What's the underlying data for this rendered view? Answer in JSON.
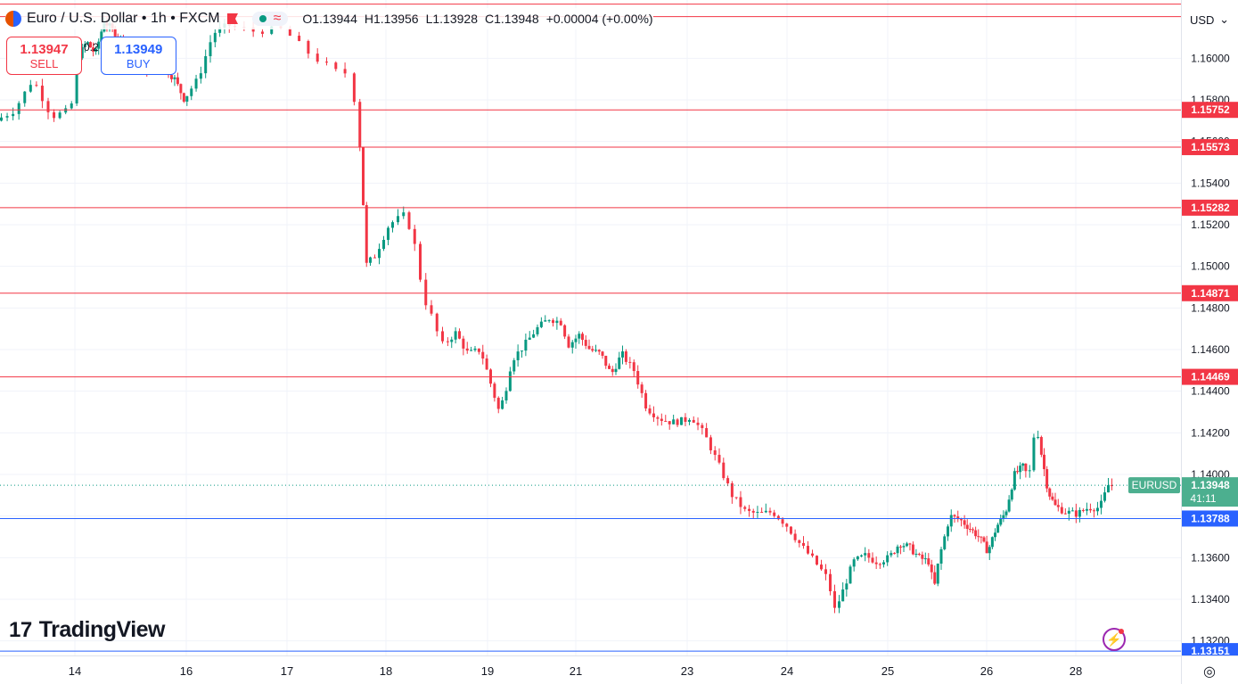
{
  "header": {
    "symbol_title": "Euro / U.S. Dollar • 1h • FXCM",
    "ohlc": {
      "open": "O1.13944",
      "high": "H1.13956",
      "low": "L1.13928",
      "close": "C1.13948",
      "change": "+0.00004 (+0.00%)"
    },
    "currency": "USD"
  },
  "trade": {
    "sell_price": "1.13947",
    "sell_label": "SELL",
    "buy_price": "1.13949",
    "buy_label": "BUY",
    "spread": "0.2"
  },
  "logo_text": "TradingView",
  "current_price": {
    "symbol": "EURUSD",
    "price": "1.13948",
    "countdown": "41:11"
  },
  "colors": {
    "up": "#089981",
    "down": "#f23645",
    "resistance": "#f23645",
    "support": "#2962ff",
    "grid": "#f0f3fa"
  },
  "chart_data": {
    "type": "candlestick",
    "instrument": "EURUSD",
    "timeframe": "1h",
    "ylim": [
      1.1313,
      1.1628
    ],
    "y_ticks": [
      "1.16000",
      "1.15800",
      "1.15600",
      "1.15400",
      "1.15200",
      "1.15000",
      "1.14800",
      "1.14600",
      "1.14400",
      "1.14200",
      "1.14000",
      "1.13800",
      "1.13600",
      "1.13400",
      "1.13200"
    ],
    "x_ticks": [
      {
        "label": "14",
        "day": 14
      },
      {
        "label": "16",
        "day": 16
      },
      {
        "label": "17",
        "day": 17
      },
      {
        "label": "18",
        "day": 18
      },
      {
        "label": "19",
        "day": 19
      },
      {
        "label": "21",
        "day": 21
      },
      {
        "label": "23",
        "day": 23
      },
      {
        "label": "24",
        "day": 24
      },
      {
        "label": "25",
        "day": 25
      },
      {
        "label": "26",
        "day": 26
      },
      {
        "label": "28",
        "day": 28
      }
    ],
    "horizontal_levels": [
      {
        "value": 1.15752,
        "label": "1.15752",
        "kind": "resistance"
      },
      {
        "value": 1.15573,
        "label": "1.15573",
        "kind": "resistance"
      },
      {
        "value": 1.15282,
        "label": "1.15282",
        "kind": "resistance"
      },
      {
        "value": 1.14871,
        "label": "1.14871",
        "kind": "resistance"
      },
      {
        "value": 1.14469,
        "label": "1.14469",
        "kind": "resistance"
      },
      {
        "value": 1.13788,
        "label": "1.13788",
        "kind": "support"
      },
      {
        "value": 1.13151,
        "label": "1.13151",
        "kind": "support"
      }
    ],
    "top_levels": [
      1.162,
      1.1626
    ],
    "last_price": 1.13948,
    "price_path": [
      [
        13.2,
        1.157
      ],
      [
        13.4,
        1.1575
      ],
      [
        13.6,
        1.159
      ],
      [
        13.8,
        1.1572
      ],
      [
        14.0,
        1.1575
      ],
      [
        14.1,
        1.16
      ],
      [
        14.3,
        1.1608
      ],
      [
        14.5,
        1.1602
      ],
      [
        14.7,
        1.1618
      ],
      [
        15.0,
        1.1611
      ],
      [
        15.3,
        1.1604
      ],
      [
        15.6,
        1.1594
      ],
      [
        15.9,
        1.1598
      ],
      [
        16.2,
        1.159
      ],
      [
        16.4,
        1.158
      ],
      [
        16.6,
        1.159
      ],
      [
        16.8,
        1.1612
      ],
      [
        17.0,
        1.1616
      ],
      [
        17.2,
        1.1613
      ],
      [
        17.4,
        1.1614
      ],
      [
        17.6,
        1.1601
      ],
      [
        17.8,
        1.1592
      ],
      [
        17.85,
        1.1594
      ],
      [
        18.0,
        1.154
      ],
      [
        18.05,
        1.15
      ],
      [
        18.2,
        1.1505
      ],
      [
        18.4,
        1.152
      ],
      [
        18.6,
        1.1525
      ],
      [
        18.7,
        1.151
      ],
      [
        18.8,
        1.1485
      ],
      [
        18.9,
        1.1475
      ],
      [
        19.0,
        1.1462
      ],
      [
        19.2,
        1.1468
      ],
      [
        19.4,
        1.1458
      ],
      [
        19.6,
        1.146
      ],
      [
        19.8,
        1.144
      ],
      [
        19.9,
        1.143
      ],
      [
        20.0,
        1.144
      ],
      [
        20.1,
        1.1455
      ],
      [
        20.3,
        1.1462
      ],
      [
        20.5,
        1.147
      ],
      [
        20.7,
        1.1475
      ],
      [
        20.9,
        1.1473
      ],
      [
        21.0,
        1.1462
      ],
      [
        21.2,
        1.1467
      ],
      [
        21.4,
        1.146
      ],
      [
        21.6,
        1.1458
      ],
      [
        21.8,
        1.1448
      ],
      [
        22.0,
        1.1458
      ],
      [
        22.2,
        1.145
      ],
      [
        22.4,
        1.1432
      ],
      [
        22.6,
        1.1427
      ],
      [
        22.8,
        1.1425
      ],
      [
        23.0,
        1.1426
      ],
      [
        23.1,
        1.1428
      ],
      [
        23.3,
        1.1419
      ],
      [
        23.5,
        1.1405
      ],
      [
        23.7,
        1.139
      ],
      [
        23.9,
        1.1382
      ],
      [
        24.1,
        1.1381
      ],
      [
        24.3,
        1.1382
      ],
      [
        24.5,
        1.1376
      ],
      [
        24.7,
        1.1367
      ],
      [
        24.9,
        1.1359
      ],
      [
        25.1,
        1.135
      ],
      [
        25.2,
        1.1335
      ],
      [
        25.3,
        1.1342
      ],
      [
        25.5,
        1.1358
      ],
      [
        25.7,
        1.1361
      ],
      [
        25.9,
        1.1358
      ],
      [
        26.1,
        1.136
      ],
      [
        26.3,
        1.1367
      ],
      [
        26.5,
        1.1365
      ],
      [
        26.7,
        1.136
      ],
      [
        26.9,
        1.1358
      ],
      [
        27.0,
        1.1345
      ],
      [
        27.1,
        1.136
      ],
      [
        27.3,
        1.138
      ],
      [
        27.5,
        1.1378
      ],
      [
        27.7,
        1.1374
      ],
      [
        27.9,
        1.137
      ],
      [
        28.1,
        1.1363
      ],
      [
        28.3,
        1.1375
      ],
      [
        28.5,
        1.1382
      ],
      [
        28.7,
        1.14
      ],
      [
        28.9,
        1.1404
      ],
      [
        29.0,
        1.1398
      ],
      [
        29.1,
        1.1425
      ],
      [
        29.2,
        1.141
      ],
      [
        29.35,
        1.1392
      ],
      [
        29.5,
        1.1385
      ],
      [
        29.7,
        1.1382
      ],
      [
        29.9,
        1.1381
      ],
      [
        30.1,
        1.1384
      ],
      [
        30.3,
        1.1384
      ],
      [
        30.45,
        1.13948
      ]
    ]
  }
}
